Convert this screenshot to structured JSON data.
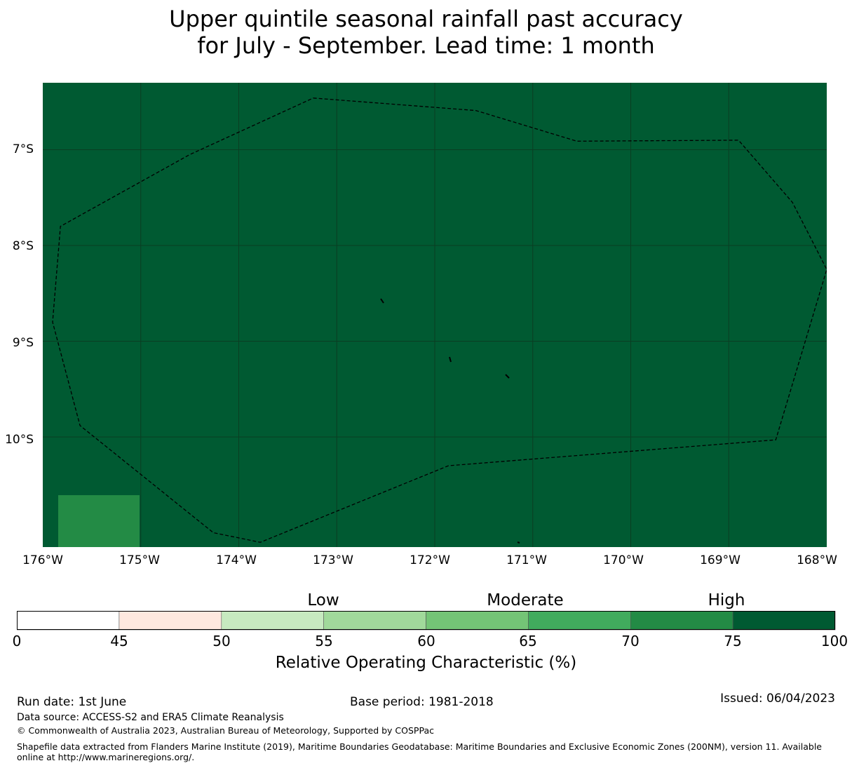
{
  "title": {
    "line1": "Upper quintile seasonal rainfall past accuracy",
    "line2": "for July - September. Lead time: 1 month"
  },
  "map": {
    "background_color": "#005a32",
    "grid_color": "#0a3d22",
    "lon_labels": [
      "176°W",
      "175°W",
      "174°W",
      "173°W",
      "172°W",
      "171°W",
      "170°W",
      "169°W",
      "168°W"
    ],
    "lat_labels": [
      "7°S",
      "8°S",
      "9°S",
      "10°S"
    ],
    "lon_range": [
      -176,
      -168
    ],
    "lat_range": [
      -11.15,
      -6.3
    ],
    "eez_boundary": [
      [
        -173.24,
        -6.46
      ],
      [
        -171.58,
        -6.59
      ],
      [
        -170.55,
        -6.91
      ],
      [
        -168.9,
        -6.9
      ],
      [
        -168.35,
        -7.55
      ],
      [
        -168.0,
        -8.25
      ],
      [
        -168.52,
        -10.03
      ],
      [
        -171.86,
        -10.3
      ],
      [
        -173.78,
        -11.1
      ],
      [
        -174.26,
        -11.0
      ],
      [
        -175.62,
        -9.88
      ],
      [
        -175.9,
        -8.8
      ],
      [
        -175.82,
        -7.8
      ],
      [
        -174.5,
        -7.05
      ]
    ],
    "region_value_percent": 75,
    "corner_cell_value_percent": 70
  },
  "colorbar": {
    "categories": [
      "Low",
      "Moderate",
      "High"
    ],
    "ticks": [
      "0",
      "45",
      "50",
      "55",
      "60",
      "65",
      "70",
      "75",
      "100"
    ],
    "colors": [
      "#ffffff",
      "#fee8df",
      "#c7e9c0",
      "#a1d99b",
      "#74c476",
      "#41ab5d",
      "#238b45",
      "#005a32"
    ],
    "label": "Relative Operating Characteristic (%)"
  },
  "footer": {
    "run_date": "Run date: 1st June",
    "base_period": "Base period: 1981-2018",
    "issued": "Issued: 06/04/2023",
    "data_source": "Data source: ACCESS-S2 and ERA5 Climate Reanalysis",
    "copyright": "© Commonwealth of Australia 2023, Australian Bureau of Meteorology, Supported by COSPPac",
    "shapefile": "Shapefile data extracted from Flanders Marine Institute (2019), Maritime Boundaries Geodatabase: Maritime Boundaries and Exclusive Economic Zones (200NM), version 11. Available online at http://www.marineregions.org/."
  }
}
